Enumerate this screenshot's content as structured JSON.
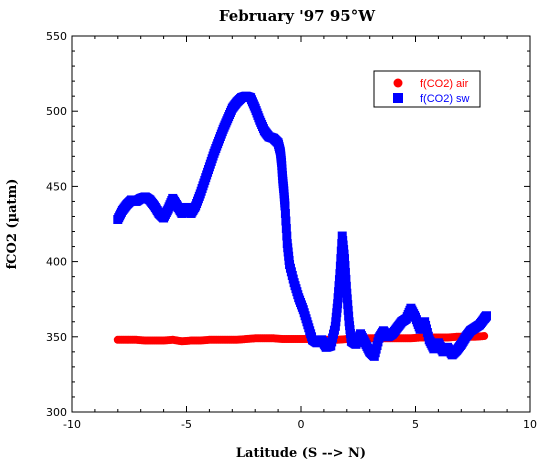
{
  "chart_data": {
    "type": "scatter",
    "title": "February '97 95°W",
    "xlabel": "Latitude (S --> N)",
    "ylabel": "fCO2 (µatm)",
    "xlim": [
      -10,
      10
    ],
    "ylim": [
      300,
      550
    ],
    "x_ticks": [
      -10,
      -5,
      0,
      5,
      10
    ],
    "y_ticks": [
      300,
      350,
      400,
      450,
      500,
      550
    ],
    "grid": false,
    "legend_position": "top-right",
    "series": [
      {
        "name": "f(CO2) air",
        "color": "#ff0000",
        "marker": "circle",
        "points": [
          [
            -8.0,
            348
          ],
          [
            -7.6,
            348
          ],
          [
            -7.2,
            348
          ],
          [
            -6.8,
            347.5
          ],
          [
            -6.4,
            347.5
          ],
          [
            -6.0,
            347.5
          ],
          [
            -5.6,
            348
          ],
          [
            -5.2,
            347
          ],
          [
            -4.8,
            347.5
          ],
          [
            -4.4,
            347.5
          ],
          [
            -4.0,
            348
          ],
          [
            -3.6,
            348
          ],
          [
            -3.2,
            348
          ],
          [
            -2.8,
            348
          ],
          [
            -2.4,
            348.5
          ],
          [
            -2.0,
            349
          ],
          [
            -1.6,
            349
          ],
          [
            -1.2,
            349
          ],
          [
            -0.8,
            348.5
          ],
          [
            -0.4,
            348.5
          ],
          [
            0.0,
            348.5
          ],
          [
            0.4,
            348.5
          ],
          [
            0.8,
            348
          ],
          [
            1.2,
            348
          ],
          [
            1.6,
            348
          ],
          [
            2.0,
            348.5
          ],
          [
            2.4,
            349
          ],
          [
            2.8,
            349
          ],
          [
            3.2,
            349
          ],
          [
            3.6,
            349
          ],
          [
            4.0,
            349
          ],
          [
            4.4,
            349
          ],
          [
            4.8,
            349
          ],
          [
            5.2,
            349.5
          ],
          [
            5.6,
            349.5
          ],
          [
            6.0,
            349.5
          ],
          [
            6.4,
            349.5
          ],
          [
            6.8,
            350
          ],
          [
            7.2,
            350
          ],
          [
            7.6,
            350
          ],
          [
            8.0,
            350.5
          ]
        ]
      },
      {
        "name": "f(CO2) sw",
        "color": "#0000ff",
        "marker": "square",
        "points": [
          [
            -8.0,
            428
          ],
          [
            -7.8,
            434
          ],
          [
            -7.6,
            438
          ],
          [
            -7.4,
            441
          ],
          [
            -7.2,
            440
          ],
          [
            -7.0,
            442
          ],
          [
            -6.8,
            443
          ],
          [
            -6.6,
            441
          ],
          [
            -6.4,
            437
          ],
          [
            -6.2,
            432
          ],
          [
            -6.0,
            429
          ],
          [
            -5.8,
            435
          ],
          [
            -5.6,
            442
          ],
          [
            -5.4,
            437
          ],
          [
            -5.2,
            432
          ],
          [
            -5.0,
            436
          ],
          [
            -4.8,
            432
          ],
          [
            -4.6,
            437
          ],
          [
            -4.4,
            445
          ],
          [
            -4.2,
            454
          ],
          [
            -4.0,
            463
          ],
          [
            -3.8,
            472
          ],
          [
            -3.6,
            480
          ],
          [
            -3.4,
            488
          ],
          [
            -3.2,
            495
          ],
          [
            -3.0,
            502
          ],
          [
            -2.8,
            506
          ],
          [
            -2.6,
            509
          ],
          [
            -2.4,
            510
          ],
          [
            -2.2,
            509
          ],
          [
            -2.0,
            502
          ],
          [
            -1.8,
            494
          ],
          [
            -1.6,
            487
          ],
          [
            -1.4,
            483
          ],
          [
            -1.2,
            482
          ],
          [
            -1.0,
            479
          ],
          [
            -0.9,
            473
          ],
          [
            -0.85,
            466
          ],
          [
            -0.8,
            455
          ],
          [
            -0.75,
            447
          ],
          [
            -0.7,
            437
          ],
          [
            -0.6,
            412
          ],
          [
            -0.5,
            398
          ],
          [
            -0.3,
            386
          ],
          [
            -0.1,
            376
          ],
          [
            0.1,
            368
          ],
          [
            0.3,
            358
          ],
          [
            0.5,
            348
          ],
          [
            0.7,
            346
          ],
          [
            0.9,
            348
          ],
          [
            1.1,
            343
          ],
          [
            1.3,
            344
          ],
          [
            1.5,
            357
          ],
          [
            1.6,
            372
          ],
          [
            1.7,
            392
          ],
          [
            1.8,
            417
          ],
          [
            1.9,
            402
          ],
          [
            2.0,
            379
          ],
          [
            2.1,
            360
          ],
          [
            2.2,
            347
          ],
          [
            2.4,
            345
          ],
          [
            2.6,
            352
          ],
          [
            2.8,
            346
          ],
          [
            3.0,
            340
          ],
          [
            3.2,
            337
          ],
          [
            3.4,
            349
          ],
          [
            3.6,
            354
          ],
          [
            3.8,
            350
          ],
          [
            4.0,
            352
          ],
          [
            4.2,
            356
          ],
          [
            4.4,
            360
          ],
          [
            4.6,
            362
          ],
          [
            4.8,
            369
          ],
          [
            5.0,
            363
          ],
          [
            5.2,
            355
          ],
          [
            5.4,
            360
          ],
          [
            5.6,
            348
          ],
          [
            5.8,
            342
          ],
          [
            6.0,
            346
          ],
          [
            6.2,
            340
          ],
          [
            6.4,
            343
          ],
          [
            6.6,
            338
          ],
          [
            6.8,
            341
          ],
          [
            7.0,
            345
          ],
          [
            7.2,
            350
          ],
          [
            7.4,
            354
          ],
          [
            7.6,
            356
          ],
          [
            7.8,
            358
          ],
          [
            8.0,
            362
          ],
          [
            8.1,
            364
          ]
        ]
      }
    ]
  }
}
